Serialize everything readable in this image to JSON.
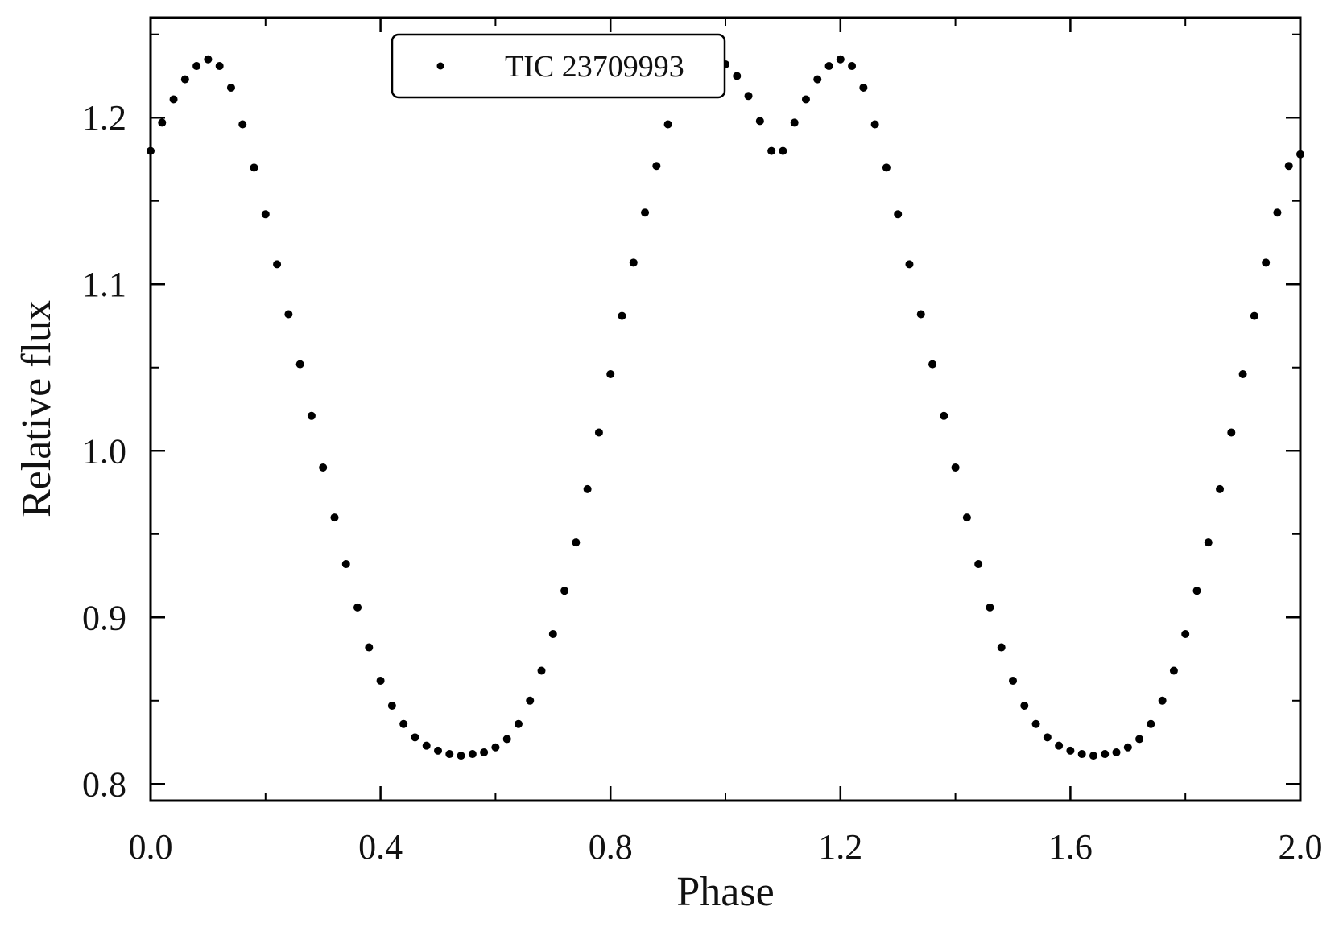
{
  "chart_data": {
    "type": "scatter",
    "xlabel": "Phase",
    "ylabel": "Relative flux",
    "xlim": [
      0.0,
      2.0
    ],
    "ylim": [
      0.79,
      1.26
    ],
    "x_ticks": [
      "0.0",
      "0.4",
      "0.8",
      "1.2",
      "1.6",
      "2.0"
    ],
    "x_tick_values": [
      0.0,
      0.4,
      0.8,
      1.2,
      1.6,
      2.0
    ],
    "x_minor_tick_values": [
      0.2,
      0.6,
      1.0,
      1.4,
      1.8
    ],
    "y_ticks": [
      "0.8",
      "0.9",
      "1.0",
      "1.1",
      "1.2"
    ],
    "y_tick_values": [
      0.8,
      0.9,
      1.0,
      1.1,
      1.2
    ],
    "y_minor_tick_values": [
      0.85,
      0.95,
      1.05,
      1.15,
      1.25
    ],
    "grid": false,
    "legend_position": "top-center",
    "marker_color": "#000000",
    "series": [
      {
        "name": "TIC 23709993",
        "x": [
          0.0,
          0.02,
          0.04,
          0.06,
          0.08,
          0.1,
          0.12,
          0.14,
          0.16,
          0.18,
          0.2,
          0.22,
          0.24,
          0.26,
          0.28,
          0.3,
          0.32,
          0.34,
          0.36,
          0.38,
          0.4,
          0.42,
          0.44,
          0.46,
          0.48,
          0.5,
          0.52,
          0.54,
          0.56,
          0.58,
          0.6,
          0.62,
          0.64,
          0.66,
          0.68,
          0.7,
          0.72,
          0.74,
          0.76,
          0.78,
          0.8,
          0.82,
          0.84,
          0.86,
          0.88,
          0.9,
          0.92,
          0.94,
          0.96,
          0.98,
          1.0,
          1.02,
          1.04,
          1.06,
          1.08,
          1.1,
          1.12,
          1.14,
          1.16,
          1.18,
          1.2,
          1.22,
          1.24,
          1.26,
          1.28,
          1.3,
          1.32,
          1.34,
          1.36,
          1.38,
          1.4,
          1.42,
          1.44,
          1.46,
          1.48,
          1.5,
          1.52,
          1.54,
          1.56,
          1.58,
          1.6,
          1.62,
          1.64,
          1.66,
          1.68,
          1.7,
          1.72,
          1.74,
          1.76,
          1.78,
          1.8,
          1.82,
          1.84,
          1.86,
          1.88,
          1.9,
          1.92,
          1.94,
          1.96,
          1.98,
          2.0
        ],
        "y": [
          1.18,
          1.197,
          1.211,
          1.223,
          1.231,
          1.235,
          1.231,
          1.218,
          1.196,
          1.17,
          1.142,
          1.112,
          1.082,
          1.052,
          1.021,
          0.99,
          0.96,
          0.932,
          0.906,
          0.882,
          0.862,
          0.847,
          0.836,
          0.828,
          0.823,
          0.82,
          0.818,
          0.817,
          0.818,
          0.819,
          0.822,
          0.827,
          0.836,
          0.85,
          0.868,
          0.89,
          0.916,
          0.945,
          0.977,
          1.011,
          1.046,
          1.081,
          1.113,
          1.143,
          1.171,
          1.196,
          1.215,
          1.228,
          1.234,
          1.235,
          1.232,
          1.225,
          1.213,
          1.198,
          1.18,
          1.18,
          1.197,
          1.211,
          1.223,
          1.231,
          1.235,
          1.231,
          1.218,
          1.196,
          1.17,
          1.142,
          1.112,
          1.082,
          1.052,
          1.021,
          0.99,
          0.96,
          0.932,
          0.906,
          0.882,
          0.862,
          0.847,
          0.836,
          0.828,
          0.823,
          0.82,
          0.818,
          0.817,
          0.818,
          0.819,
          0.822,
          0.827,
          0.836,
          0.85,
          0.868,
          0.89,
          0.916,
          0.945,
          0.977,
          1.011,
          1.046,
          1.081,
          1.113,
          1.143,
          1.171,
          1.178
        ]
      }
    ]
  }
}
